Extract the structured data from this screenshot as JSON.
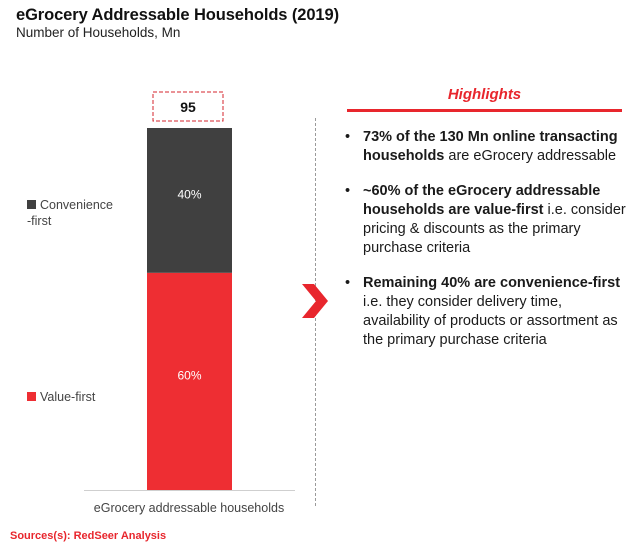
{
  "title": "eGrocery Addressable Households (2019)",
  "subtitle": "Number of Households, Mn",
  "chart_data": {
    "type": "bar",
    "stacked": true,
    "title": "eGrocery Addressable Households (2019)",
    "subtitle": "Number of Households, Mn",
    "categories": [
      "eGrocery addressable households"
    ],
    "total_label": "95",
    "totals": [
      95
    ],
    "series": [
      {
        "name": "Value-first",
        "values": [
          60
        ],
        "label": "60%",
        "color": "#ee2e33"
      },
      {
        "name": "Convenience-first",
        "values": [
          40
        ],
        "label": "40%",
        "color": "#404040"
      }
    ],
    "value_units": "percent of total",
    "xlabel": "",
    "ylabel": "",
    "ylim": [
      0,
      100
    ],
    "grid": false,
    "legend_position": "left"
  },
  "legend": [
    {
      "label_line1": "Convenience",
      "label_line2": "-first",
      "color": "#404040"
    },
    {
      "label_line1": "Value-first",
      "label_line2": "",
      "color": "#ee2e33"
    }
  ],
  "highlights": {
    "title": "Highlights",
    "accent_color": "#e8262d",
    "bullets": [
      {
        "bold": "73% of the 130 Mn online transacting households",
        "text": " are eGrocery addressable"
      },
      {
        "bold": "~60% of the eGrocery addressable households are value-first",
        "text": " i.e. consider pricing & discounts as the primary purchase criteria"
      },
      {
        "bold": "Remaining 40% are convenience-first",
        "text": " i.e. they consider delivery time, availability of products or assortment as the primary purchase criteria"
      }
    ],
    "bullet_glyph": "•"
  },
  "source": "Sources(s): RedSeer Analysis",
  "icons": {
    "arrow": "chevron-right-icon"
  }
}
